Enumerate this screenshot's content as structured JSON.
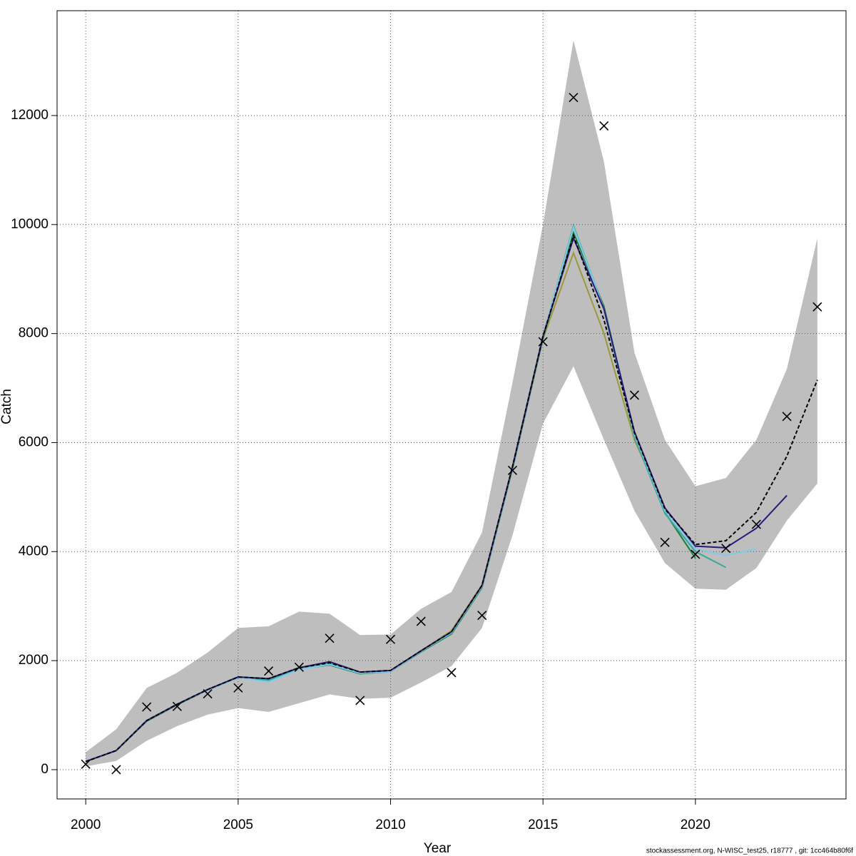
{
  "chart_data": {
    "type": "line",
    "y_label": "Catch",
    "x_label": "Year",
    "footer": "stockassessment.org, N-WISC_test25, r18777 , git: 1cc464b80f6f",
    "x": [
      2000,
      2001,
      2002,
      2003,
      2004,
      2005,
      2006,
      2007,
      2008,
      2009,
      2010,
      2011,
      2012,
      2013,
      2014,
      2015,
      2016,
      2017,
      2018,
      2019,
      2020,
      2021,
      2022,
      2023,
      2024
    ],
    "xlim": [
      1999.06,
      2024.94
    ],
    "xticks": [
      2000,
      2005,
      2010,
      2015,
      2020
    ],
    "ylim": [
      -537,
      13923
    ],
    "yticks": [
      0,
      2000,
      4000,
      6000,
      8000,
      10000,
      12000
    ],
    "grid": true,
    "band": {
      "color": "#bebebe",
      "upper": [
        320,
        740,
        1500,
        1780,
        2150,
        2600,
        2630,
        2900,
        2860,
        2470,
        2480,
        2950,
        3260,
        4350,
        7100,
        10000,
        13380,
        11150,
        7650,
        6050,
        5200,
        5350,
        6050,
        7350,
        9750
      ],
      "lower": [
        60,
        160,
        530,
        800,
        1010,
        1130,
        1060,
        1220,
        1380,
        1300,
        1320,
        1600,
        1900,
        2600,
        4300,
        6350,
        7400,
        6050,
        4750,
        3790,
        3320,
        3300,
        3700,
        4570,
        5250
      ]
    },
    "series": [
      {
        "color": "#9a9a3a",
        "dash": false,
        "values": [
          150,
          350,
          900,
          1200,
          1470,
          1700,
          1660,
          1860,
          1940,
          1780,
          1810,
          2180,
          2550,
          3390,
          5540,
          7900,
          9480,
          8000,
          6050,
          4800,
          null,
          null,
          null,
          null,
          null
        ]
      },
      {
        "color": "#1a8040",
        "dash": false,
        "values": [
          150,
          350,
          890,
          1190,
          1460,
          1690,
          1650,
          1850,
          1920,
          1760,
          1800,
          2160,
          2490,
          3340,
          5520,
          7920,
          9850,
          8500,
          6150,
          4720,
          3880,
          null,
          null,
          null,
          null
        ]
      },
      {
        "color": "#3aa89a",
        "dash": false,
        "values": [
          150,
          350,
          900,
          1200,
          1470,
          1700,
          1640,
          1860,
          1950,
          1780,
          1810,
          2170,
          2510,
          3360,
          5550,
          7950,
          9980,
          8450,
          6100,
          4700,
          4000,
          3710,
          null,
          null,
          null
        ]
      },
      {
        "color": "#7ecbea",
        "dash": false,
        "values": [
          150,
          350,
          900,
          1200,
          1460,
          1690,
          1610,
          1840,
          1930,
          1770,
          1800,
          2170,
          2510,
          3360,
          5550,
          7950,
          9950,
          8450,
          6150,
          4750,
          4050,
          3930,
          4050,
          null,
          null
        ]
      },
      {
        "color": "#2a1a7a",
        "dash": false,
        "values": [
          150,
          350,
          900,
          1200,
          1470,
          1700,
          1670,
          1870,
          1980,
          1790,
          1820,
          2180,
          2530,
          3380,
          5560,
          7950,
          9750,
          8450,
          6200,
          4800,
          4100,
          4070,
          4430,
          5030,
          null
        ]
      },
      {
        "color": "#000000",
        "dash": true,
        "values": [
          150,
          350,
          900,
          1200,
          1470,
          1700,
          1670,
          1870,
          1960,
          1790,
          1820,
          2180,
          2530,
          3380,
          5560,
          7950,
          9800,
          8250,
          6180,
          4780,
          4130,
          4200,
          4720,
          5750,
          7150
        ]
      }
    ],
    "observed": {
      "color": "#000000",
      "values": [
        100,
        0,
        1150,
        1160,
        1390,
        1500,
        1810,
        1880,
        2410,
        1270,
        2390,
        2720,
        1780,
        2830,
        5490,
        7850,
        12330,
        11810,
        6870,
        4170,
        3950,
        4060,
        4500,
        6480,
        8490
      ]
    }
  }
}
